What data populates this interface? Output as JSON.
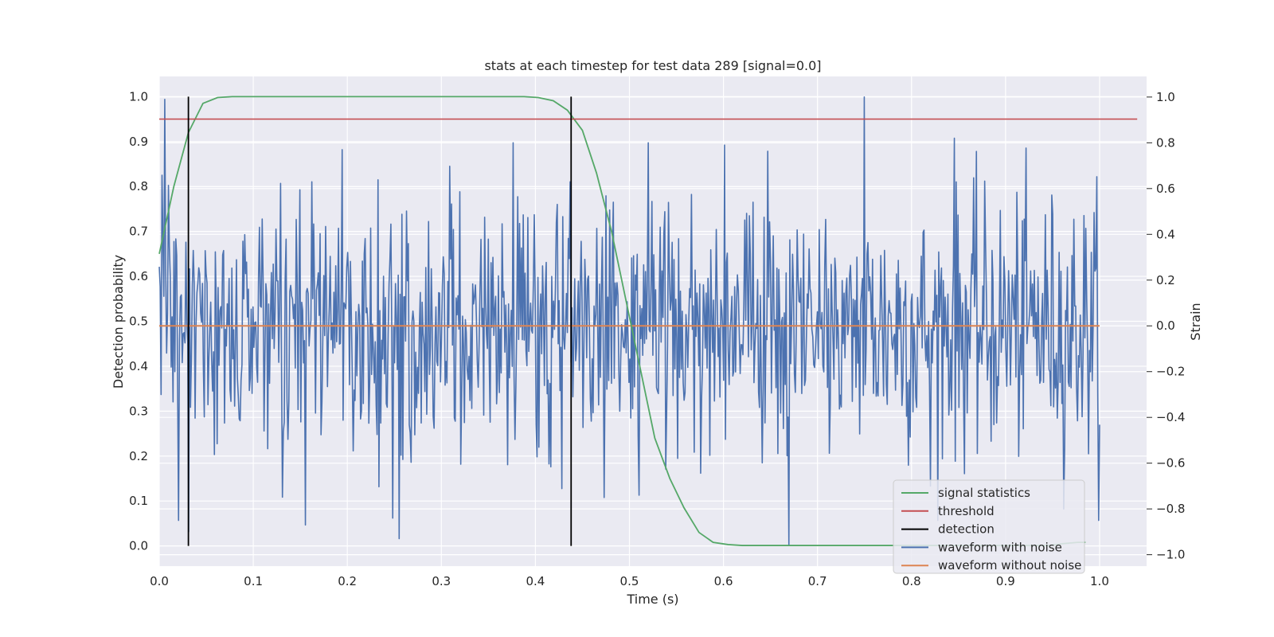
{
  "chart_data": {
    "type": "line",
    "title": "stats at each timestep for test data 289 [signal=0.0]",
    "xlabel": "Time (s)",
    "ylabel_left": "Detection probability",
    "ylabel_right": "Strain",
    "xlim": [
      0.0,
      1.05
    ],
    "ylim_left": [
      -0.045,
      1.045
    ],
    "ylim_right": [
      -1.05,
      1.09
    ],
    "x_ticks": [
      "0.0",
      "0.1",
      "0.2",
      "0.3",
      "0.4",
      "0.5",
      "0.6",
      "0.7",
      "0.8",
      "0.9",
      "1.0"
    ],
    "y_ticks_left": [
      "0.0",
      "0.1",
      "0.2",
      "0.3",
      "0.4",
      "0.5",
      "0.6",
      "0.7",
      "0.8",
      "0.9",
      "1.0"
    ],
    "y_ticks_right": [
      "-1.0",
      "-0.8",
      "-0.6",
      "-0.4",
      "-0.2",
      "0.0",
      "0.2",
      "0.4",
      "0.6",
      "0.8",
      "1.0"
    ],
    "grid": true,
    "legend_position": "lower-right",
    "colors": {
      "background": "#eaeaf2",
      "grid": "#ffffff",
      "signal_statistics": "#55a868",
      "threshold": "#c44e52",
      "detection": "#000000",
      "waveform_with_noise": "#4c72b0",
      "waveform_without_noise": "#dd8452"
    },
    "series": [
      {
        "name": "signal statistics",
        "axis": "left",
        "x": [
          0.0,
          0.0155,
          0.031,
          0.0465,
          0.062,
          0.0775,
          0.093,
          0.109,
          0.124,
          0.14,
          0.155,
          0.171,
          0.186,
          0.202,
          0.217,
          0.233,
          0.248,
          0.264,
          0.279,
          0.295,
          0.31,
          0.326,
          0.341,
          0.357,
          0.372,
          0.388,
          0.403,
          0.419,
          0.434,
          0.45,
          0.465,
          0.481,
          0.496,
          0.512,
          0.527,
          0.543,
          0.558,
          0.574,
          0.589,
          0.605,
          0.62,
          0.636,
          0.651,
          0.667,
          0.682,
          0.698,
          0.713,
          0.729,
          0.744,
          0.76,
          0.775,
          0.791,
          0.806,
          0.822,
          0.837,
          0.853,
          0.868,
          0.884,
          0.899,
          0.915,
          0.93,
          0.946,
          0.961,
          0.977,
          0.985
        ],
        "y": [
          0.65,
          0.8,
          0.92,
          0.985,
          0.998,
          1.0,
          1.0,
          1.0,
          1.0,
          1.0,
          1.0,
          1.0,
          1.0,
          1.0,
          1.0,
          1.0,
          1.0,
          1.0,
          1.0,
          1.0,
          1.0,
          1.0,
          1.0,
          1.0,
          1.0,
          1.0,
          0.998,
          0.991,
          0.97,
          0.925,
          0.83,
          0.7,
          0.55,
          0.39,
          0.24,
          0.15,
          0.085,
          0.03,
          0.008,
          0.003,
          0.001,
          0.001,
          0.001,
          0.001,
          0.001,
          0.001,
          0.001,
          0.001,
          0.001,
          0.001,
          0.001,
          0.001,
          0.001,
          0.001,
          0.001,
          0.001,
          0.001,
          0.001,
          0.001,
          0.001,
          0.001,
          0.001,
          0.005,
          0.008,
          0.008
        ]
      },
      {
        "name": "threshold",
        "axis": "left",
        "x": [
          0.0,
          1.04
        ],
        "y": [
          0.95,
          0.95
        ]
      },
      {
        "name": "detection",
        "axis": "left",
        "x": [
          0.031,
          0.438
        ],
        "y_range": [
          0.0,
          1.0
        ]
      },
      {
        "name": "waveform with noise",
        "axis": "right",
        "x_range": [
          0.0,
          1.0
        ],
        "points": 1024,
        "std": 0.28,
        "highlights": [
          {
            "x": 0.006,
            "y": 0.99
          },
          {
            "x": 0.021,
            "y": -0.85
          },
          {
            "x": 0.031,
            "y": -0.9
          },
          {
            "x": 0.155,
            "y": -0.87
          },
          {
            "x": 0.195,
            "y": 0.77
          },
          {
            "x": 0.248,
            "y": -0.84
          },
          {
            "x": 0.255,
            "y": -0.93
          },
          {
            "x": 0.376,
            "y": 0.8
          },
          {
            "x": 0.404,
            "y": -0.53
          },
          {
            "x": 0.473,
            "y": -0.75
          },
          {
            "x": 0.51,
            "y": -0.74
          },
          {
            "x": 0.52,
            "y": 0.8
          },
          {
            "x": 0.601,
            "y": 0.79
          },
          {
            "x": 0.67,
            "y": -0.96
          },
          {
            "x": 0.75,
            "y": 1.0
          },
          {
            "x": 0.82,
            "y": -0.7
          },
          {
            "x": 0.846,
            "y": 0.82
          },
          {
            "x": 0.962,
            "y": -0.8
          },
          {
            "x": 0.963,
            "y": -0.53
          }
        ]
      },
      {
        "name": "waveform without noise",
        "axis": "right",
        "x": [
          0.0,
          1.0
        ],
        "y": [
          0.0,
          0.0
        ]
      }
    ]
  }
}
